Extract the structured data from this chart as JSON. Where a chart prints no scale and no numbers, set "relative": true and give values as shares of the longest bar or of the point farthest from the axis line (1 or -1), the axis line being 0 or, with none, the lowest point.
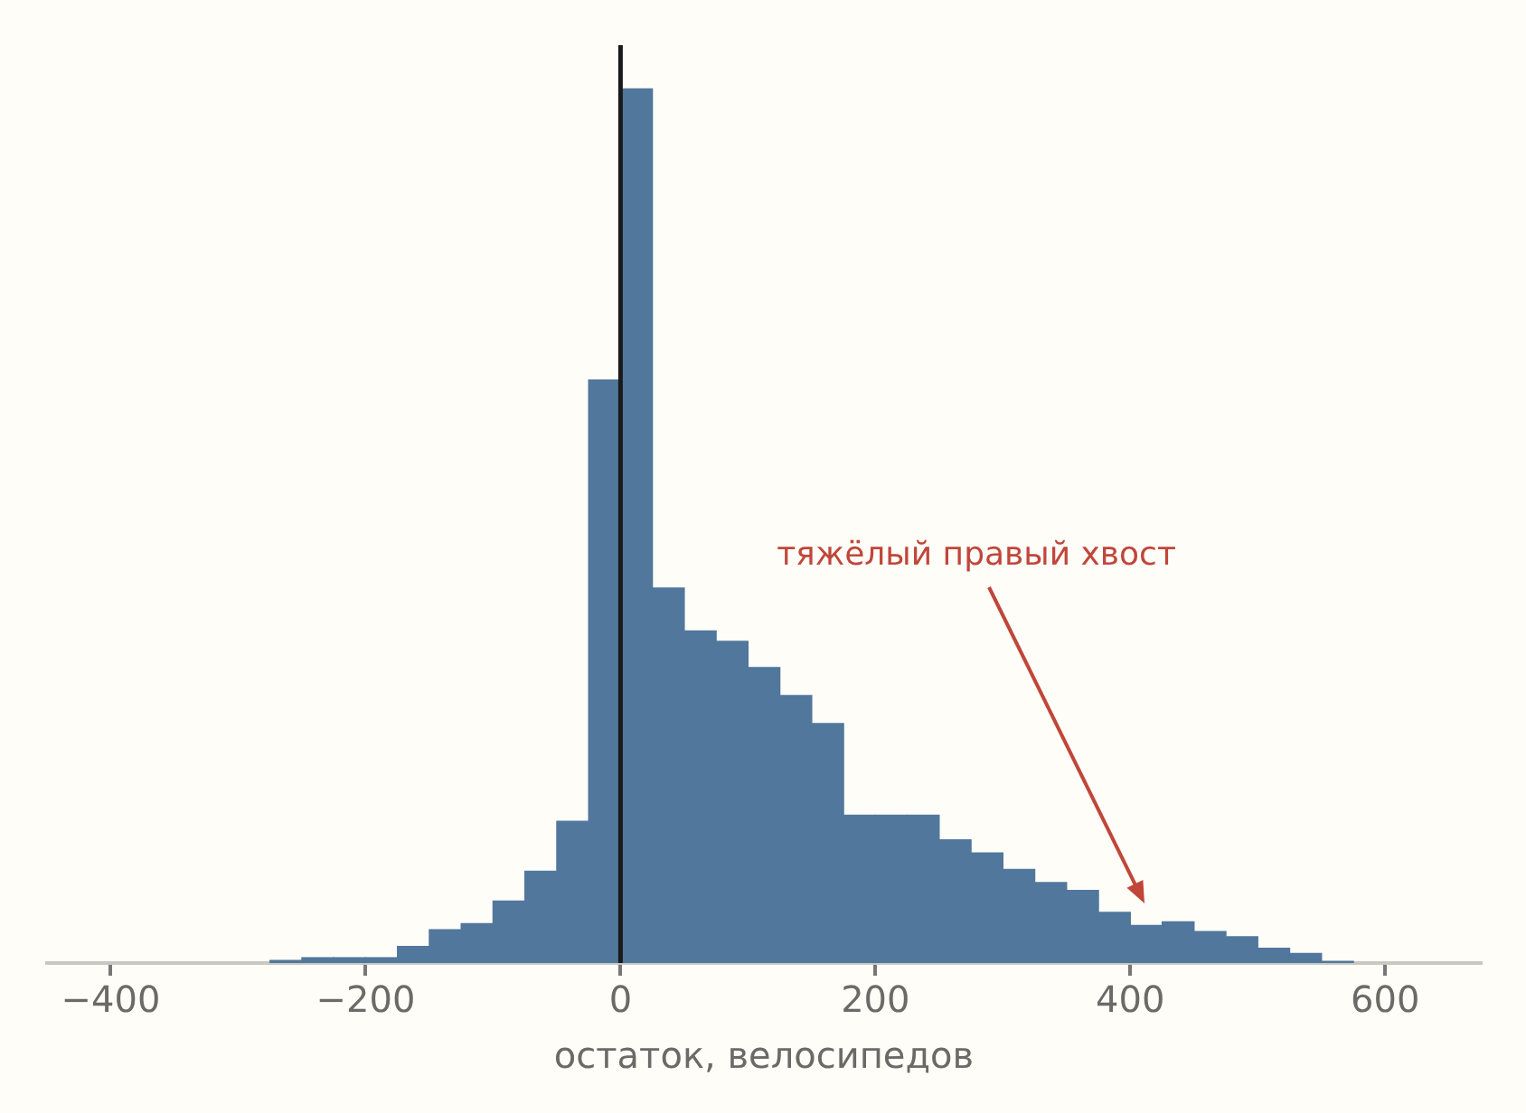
{
  "chart_data": {
    "type": "bar",
    "relative": true,
    "xlabel": "остаток, велосипедов",
    "color": "#51779c",
    "x": [
      -262.5,
      -237.5,
      -212.5,
      -187.5,
      -162.5,
      -137.5,
      -112.5,
      -87.5,
      -62.5,
      -37.5,
      -12.5,
      12.5,
      37.5,
      62.5,
      87.5,
      112.5,
      137.5,
      162.5,
      187.5,
      212.5,
      237.5,
      262.5,
      287.5,
      312.5,
      337.5,
      362.5,
      387.5,
      412.5,
      437.5,
      462.5,
      487.5,
      512.5,
      537.5,
      562.5
    ],
    "values": [
      0.003,
      0.006,
      0.006,
      0.006,
      0.019,
      0.038,
      0.045,
      0.071,
      0.105,
      0.162,
      0.667,
      1,
      0.429,
      0.38,
      0.368,
      0.338,
      0.306,
      0.274,
      0.169,
      0.169,
      0.169,
      0.141,
      0.126,
      0.107,
      0.092,
      0.083,
      0.058,
      0.043,
      0.047,
      0.036,
      0.03,
      0.017,
      0.011,
      0.002
    ],
    "xlim": [
      -450,
      675
    ],
    "xticks": [
      {
        "value": -400,
        "label": "−400"
      },
      {
        "value": -200,
        "label": "−200"
      },
      {
        "value": 0,
        "label": "0"
      },
      {
        "value": 200,
        "label": "200"
      },
      {
        "value": 400,
        "label": "400"
      },
      {
        "value": 600,
        "label": "600"
      }
    ],
    "ref_lines": [
      {
        "axis": "x",
        "value": 0,
        "color": "#1a1a1a"
      }
    ],
    "annotations": [
      "тяжёлый правый хвост"
    ]
  }
}
